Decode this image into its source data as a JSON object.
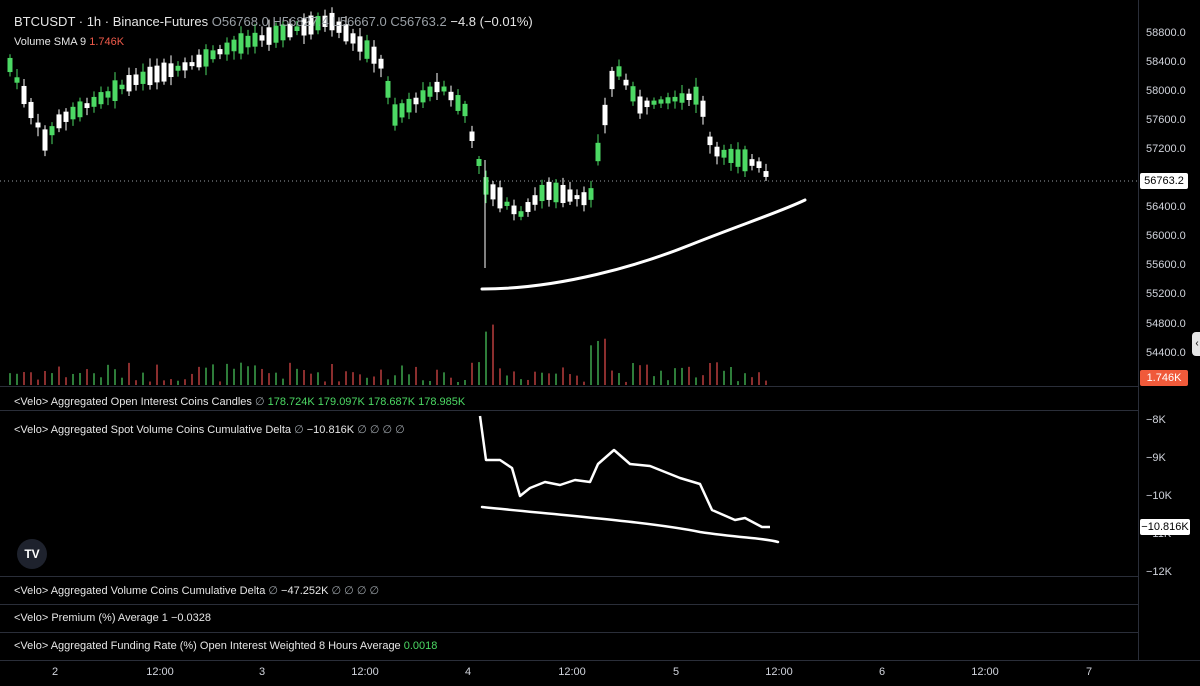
{
  "header": {
    "symbol": "BTCUSDT · 1h · Binance-Futures",
    "open": "O56768.0",
    "high": "H56827.4",
    "low": "L56667.0",
    "close": "C56763.2",
    "change": "−4.8 (−0.01%)"
  },
  "volume_sma": {
    "label": "Volume SMA 9",
    "value": "1.746K"
  },
  "price_axis": {
    "ticks": [
      "58800.0",
      "58400.0",
      "58000.0",
      "57600.0",
      "57200.0",
      "56400.0",
      "56000.0",
      "55600.0",
      "55200.0",
      "54800.0",
      "54400.0"
    ],
    "current_price": "56763.2",
    "volume_badge": "1.746K"
  },
  "indicators": {
    "open_interest": {
      "label": "<Velo> Aggregated Open Interest Coins Candles",
      "values": [
        "178.724K",
        "179.097K",
        "178.687K",
        "178.985K"
      ]
    },
    "spot_cvd": {
      "label": "<Velo> Aggregated Spot Volume Coins Cumulative Delta",
      "value": "−10.816K",
      "axis": [
        "−8K",
        "−9K",
        "−10K",
        "−11K",
        "−12K"
      ],
      "badge": "−10.816K"
    },
    "volume_cvd": {
      "label": "<Velo> Aggregated Volume Coins Cumulative Delta",
      "value": "−47.252K"
    },
    "premium": {
      "label": "<Velo> Premium (%) Average 1",
      "value": "−0.0328"
    },
    "funding": {
      "label": "<Velo> Aggregated Funding Rate (%) Open Interest Weighted 8 Hours Average",
      "value": "0.0018"
    }
  },
  "time_axis": [
    "2",
    "12:00",
    "3",
    "12:00",
    "4",
    "12:00",
    "5",
    "12:00",
    "6",
    "12:00",
    "7"
  ],
  "icons": {
    "settings_circle": "∅",
    "logo": "TV",
    "scroll": "‹"
  },
  "colors": {
    "up": "#4cd964",
    "down": "#ffffff",
    "volume_down": "#8b2e2e",
    "volume_up": "#2e7d3a"
  }
}
